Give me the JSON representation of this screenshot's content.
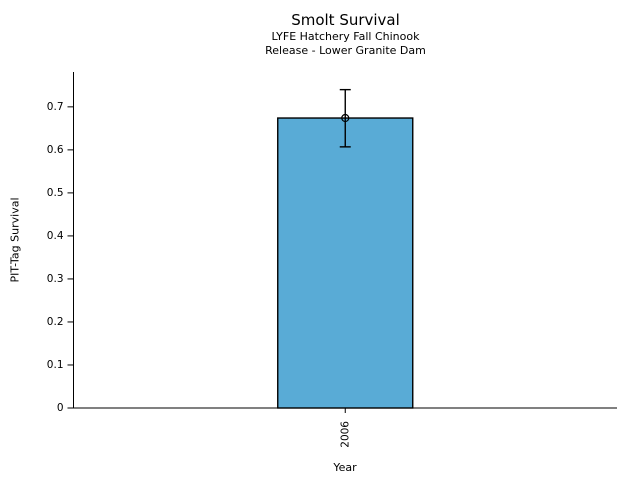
{
  "window": {
    "background": "#ffffff"
  },
  "chart_data": {
    "type": "bar",
    "title": "Smolt Survival",
    "subtitle_lines": [
      "LYFE Hatchery Fall Chinook",
      "Release - Lower Granite Dam"
    ],
    "xlabel": "Year",
    "ylabel": "PIT-Tag Survival",
    "categories": [
      "2006"
    ],
    "values": [
      0.674
    ],
    "error_low": [
      0.607
    ],
    "error_high": [
      0.74
    ],
    "yticks": [
      0,
      0.1,
      0.2,
      0.3,
      0.4,
      0.5,
      0.6,
      0.7
    ],
    "ytick_labels": [
      "0",
      "0.1",
      "0.2",
      "0.3",
      "0.4",
      "0.5",
      "0.6",
      "0.7"
    ],
    "ylim": [
      0,
      0.781
    ],
    "xtick_rotation": -90,
    "grid": false,
    "legend": null,
    "marker": "open-circle",
    "bar_color": "#59ABD6",
    "bar_edge_color": "#000000",
    "error_color": "#000000",
    "axis_color": "#000000",
    "text_color": "#000000"
  }
}
